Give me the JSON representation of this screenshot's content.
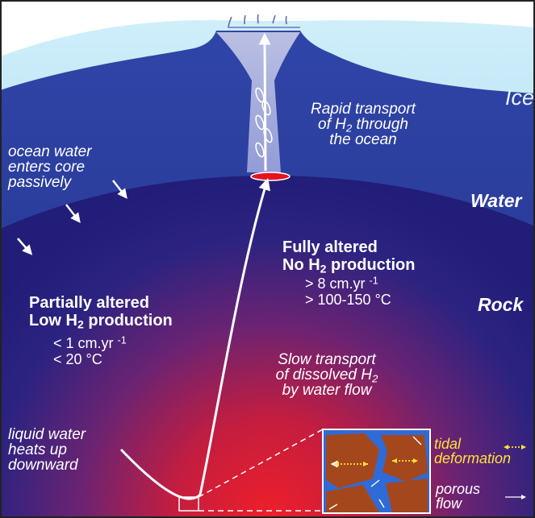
{
  "layers": {
    "ice": "Ice",
    "water": "Water",
    "rock": "Rock"
  },
  "ocean_inflow": [
    "ocean water",
    "enters core",
    "passively"
  ],
  "rapid_transport": {
    "line1": "Rapid transport",
    "line2_pre": "of H",
    "line2_sub": "2",
    "line2_post": " through",
    "line3": "the ocean"
  },
  "fully_altered": {
    "title1": "Fully altered",
    "title2_pre": "No H",
    "title2_sub": "2",
    "title2_post": " production",
    "rate_pre": "> 8 cm.yr",
    "rate_sup": "-1",
    "temp": "> 100-150 °C"
  },
  "partially_altered": {
    "title1": "Partially altered",
    "title2_pre": "Low H",
    "title2_sub": "2",
    "title2_post": " production",
    "rate_pre": "< 1 cm.yr",
    "rate_sup": "-1",
    "temp": "< 20 °C"
  },
  "slow_transport": {
    "line1": "Slow transport",
    "line2_pre": "of dissolved H",
    "line2_sub": "2",
    "line3": "by water flow"
  },
  "heating": [
    "liquid water",
    "heats up",
    "downward"
  ],
  "legend": {
    "tidal_line1": "tidal",
    "tidal_line2": "deformation",
    "porous_line1": "porous",
    "porous_line2": "flow"
  },
  "colors": {
    "ice": "#a9dcf0",
    "ocean": "#2b3a97",
    "rock_dark": "#22207a",
    "rock_hot": "#e0202a",
    "grain": "#a5471c",
    "pore_water": "#2f6bd6",
    "tidal_arrow": "#ffe23a"
  }
}
